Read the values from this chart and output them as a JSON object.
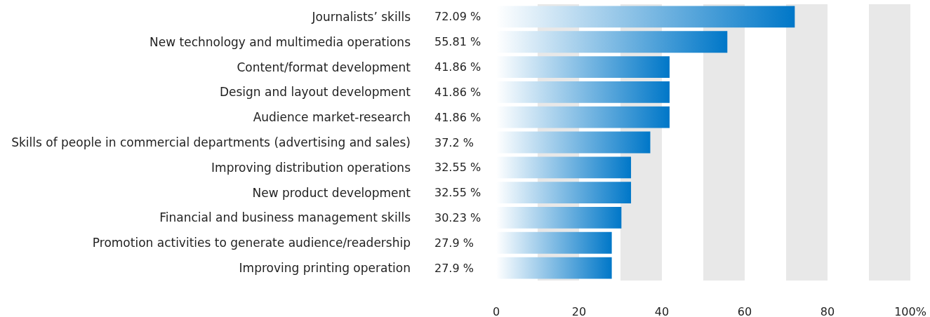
{
  "chart_data": {
    "type": "bar",
    "orientation": "horizontal",
    "categories": [
      "Journalists’ skills",
      "New technology and multimedia operations",
      "Content/format development",
      "Design and layout development",
      "Audience market-research",
      "Skills of people in commercial departments (advertising and sales)",
      "Improving distribution operations",
      "New product development",
      "Financial and business management skills",
      "Promotion activities to generate audience/readership",
      "Improving printing operation"
    ],
    "values": [
      72.09,
      55.81,
      41.86,
      41.86,
      41.86,
      37.2,
      32.55,
      32.55,
      30.23,
      27.9,
      27.9
    ],
    "value_labels": [
      "72.09 %",
      "55.81 %",
      "41.86 %",
      "41.86 %",
      "41.86 %",
      "37.2 %",
      "32.55 %",
      "32.55 %",
      "30.23 %",
      "27.9 %",
      "27.9 %"
    ],
    "color": "#0077c8",
    "xlim": [
      0,
      100
    ],
    "xticks": [
      0,
      20,
      40,
      60,
      80,
      {
        "value": 100,
        "label": "100%"
      }
    ],
    "bands": [
      {
        "axis": "x",
        "from": 10,
        "to": 20,
        "color": "#e8e8e8"
      },
      {
        "axis": "x",
        "from": 30,
        "to": 40,
        "color": "#e8e8e8"
      },
      {
        "axis": "x",
        "from": 50,
        "to": 60,
        "color": "#e8e8e8"
      },
      {
        "axis": "x",
        "from": 70,
        "to": 80,
        "color": "#e8e8e8"
      },
      {
        "axis": "x",
        "from": 90,
        "to": 100,
        "color": "#e8e8e8"
      }
    ],
    "grid": false
  }
}
